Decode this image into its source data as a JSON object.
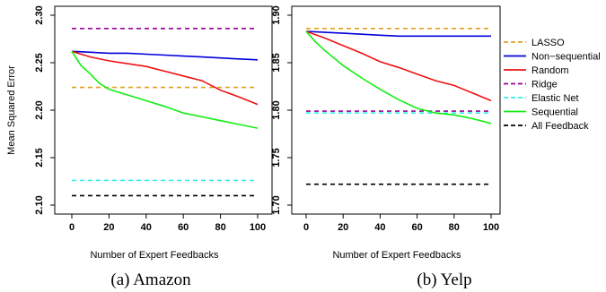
{
  "figure": {
    "ylabel": "Mean Squared Error",
    "xlabel": "Number of Expert Feedbacks",
    "captions": [
      "(a) Amazon",
      "(b) Yelp"
    ]
  },
  "legend": {
    "placement": "right",
    "entries": [
      {
        "label": "LASSO",
        "color": "#e0a020",
        "dashed": true
      },
      {
        "label": "Non−sequential",
        "color": "#0000dd",
        "dashed": false
      },
      {
        "label": "Random",
        "color": "#ee1111",
        "dashed": false
      },
      {
        "label": "Ridge",
        "color": "#990099",
        "dashed": true
      },
      {
        "label": "Elastic Net",
        "color": "#33eeee",
        "dashed": true
      },
      {
        "label": "Sequential",
        "color": "#11ee11",
        "dashed": false
      },
      {
        "label": "All Feedback",
        "color": "#000000",
        "dashed": true
      }
    ]
  },
  "chart_data": [
    {
      "type": "line",
      "caption": "(a) Amazon",
      "xlabel": "Number of Expert Feedbacks",
      "ylabel": "Mean Squared Error",
      "xlim": [
        0,
        100
      ],
      "ylim": [
        2.1,
        2.3
      ],
      "xticks": [
        "0",
        "20",
        "40",
        "60",
        "80",
        "100"
      ],
      "yticks": [
        "2.10",
        "2.15",
        "2.20",
        "2.25",
        "2.30"
      ],
      "grid": false,
      "series": [
        {
          "name": "LASSO",
          "color": "#e0a020",
          "dashed": true,
          "x": [
            0,
            100
          ],
          "y": [
            2.224,
            2.224
          ]
        },
        {
          "name": "Non−sequential",
          "color": "#0000dd",
          "dashed": false,
          "x": [
            0,
            10,
            20,
            30,
            40,
            50,
            60,
            70,
            80,
            90,
            100
          ],
          "y": [
            2.262,
            2.261,
            2.26,
            2.26,
            2.259,
            2.258,
            2.257,
            2.256,
            2.255,
            2.254,
            2.253
          ]
        },
        {
          "name": "Random",
          "color": "#ee1111",
          "dashed": false,
          "x": [
            0,
            10,
            20,
            30,
            40,
            50,
            60,
            70,
            80,
            90,
            100
          ],
          "y": [
            2.262,
            2.256,
            2.252,
            2.249,
            2.246,
            2.241,
            2.236,
            2.231,
            2.221,
            2.214,
            2.206
          ]
        },
        {
          "name": "Ridge",
          "color": "#990099",
          "dashed": true,
          "x": [
            0,
            100
          ],
          "y": [
            2.286,
            2.286
          ]
        },
        {
          "name": "Elastic Net",
          "color": "#33eeee",
          "dashed": true,
          "x": [
            0,
            100
          ],
          "y": [
            2.126,
            2.126
          ]
        },
        {
          "name": "Sequential",
          "color": "#11ee11",
          "dashed": false,
          "x": [
            0,
            5,
            10,
            15,
            20,
            30,
            40,
            50,
            60,
            70,
            80,
            90,
            100
          ],
          "y": [
            2.262,
            2.247,
            2.238,
            2.228,
            2.222,
            2.216,
            2.21,
            2.204,
            2.197,
            2.193,
            2.189,
            2.185,
            2.181
          ]
        },
        {
          "name": "All Feedback",
          "color": "#000000",
          "dashed": true,
          "x": [
            0,
            100
          ],
          "y": [
            2.11,
            2.11
          ]
        }
      ]
    },
    {
      "type": "line",
      "caption": "(b) Yelp",
      "xlabel": "Number of Expert Feedbacks",
      "ylabel": "",
      "xlim": [
        0,
        100
      ],
      "ylim": [
        1.7,
        1.9
      ],
      "xticks": [
        "0",
        "20",
        "40",
        "60",
        "80",
        "100"
      ],
      "yticks": [
        "1.70",
        "1.75",
        "1.80",
        "1.85",
        "1.90"
      ],
      "grid": false,
      "series": [
        {
          "name": "LASSO",
          "color": "#e0a020",
          "dashed": true,
          "x": [
            0,
            100
          ],
          "y": [
            1.886,
            1.886
          ]
        },
        {
          "name": "Non−sequential",
          "color": "#0000dd",
          "dashed": false,
          "x": [
            0,
            10,
            20,
            30,
            40,
            50,
            60,
            70,
            80,
            90,
            100
          ],
          "y": [
            1.883,
            1.882,
            1.881,
            1.88,
            1.879,
            1.878,
            1.878,
            1.878,
            1.878,
            1.878,
            1.878
          ]
        },
        {
          "name": "Random",
          "color": "#ee1111",
          "dashed": false,
          "x": [
            0,
            10,
            20,
            30,
            40,
            50,
            60,
            70,
            80,
            90,
            100
          ],
          "y": [
            1.883,
            1.876,
            1.868,
            1.86,
            1.851,
            1.845,
            1.838,
            1.831,
            1.826,
            1.818,
            1.81
          ]
        },
        {
          "name": "Ridge",
          "color": "#990099",
          "dashed": true,
          "x": [
            0,
            100
          ],
          "y": [
            1.799,
            1.799
          ]
        },
        {
          "name": "Elastic Net",
          "color": "#33eeee",
          "dashed": true,
          "x": [
            0,
            100
          ],
          "y": [
            1.797,
            1.797
          ]
        },
        {
          "name": "Sequential",
          "color": "#11ee11",
          "dashed": false,
          "x": [
            0,
            5,
            10,
            20,
            30,
            40,
            50,
            60,
            70,
            80,
            90,
            100
          ],
          "y": [
            1.883,
            1.872,
            1.863,
            1.847,
            1.834,
            1.822,
            1.811,
            1.802,
            1.797,
            1.795,
            1.791,
            1.786
          ]
        },
        {
          "name": "All Feedback",
          "color": "#000000",
          "dashed": true,
          "x": [
            0,
            100
          ],
          "y": [
            1.722,
            1.722
          ]
        }
      ]
    }
  ]
}
